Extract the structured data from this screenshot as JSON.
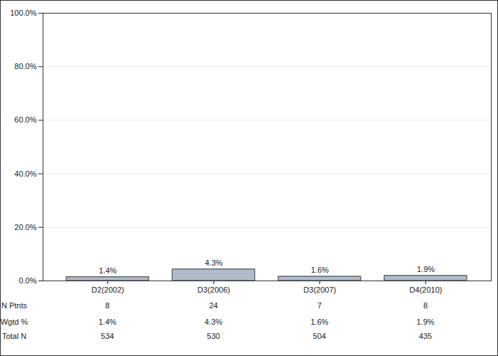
{
  "chart_data": {
    "type": "bar",
    "categories": [
      "D2(2002)",
      "D3(2006)",
      "D3(2007)",
      "D4(2010)"
    ],
    "values": [
      1.4,
      4.3,
      1.6,
      1.9
    ],
    "value_labels": [
      "1.4%",
      "4.3%",
      "1.6%",
      "1.9%"
    ],
    "data_labels": true,
    "color": "#aebccc",
    "ylim": [
      0,
      100
    ],
    "yticks": [
      {
        "value": 0,
        "label": "0.0%"
      },
      {
        "value": 20,
        "label": "20.0%"
      },
      {
        "value": 40,
        "label": "40.0%"
      },
      {
        "value": 60,
        "label": "60.0%"
      },
      {
        "value": 80,
        "label": "80.0%"
      },
      {
        "value": 100,
        "label": "100.0%"
      }
    ],
    "grid": true,
    "table": {
      "rows": [
        {
          "label": "N Ptnts",
          "values": [
            8,
            24,
            7,
            8
          ]
        },
        {
          "label": "Wgtd %",
          "values": [
            1.4,
            4.3,
            1.6,
            1.9
          ],
          "value_labels": [
            "1.4%",
            "4.3%",
            "1.6%",
            "1.9%"
          ]
        },
        {
          "label": "Total N",
          "values": [
            534,
            530,
            504,
            435
          ]
        }
      ]
    }
  }
}
